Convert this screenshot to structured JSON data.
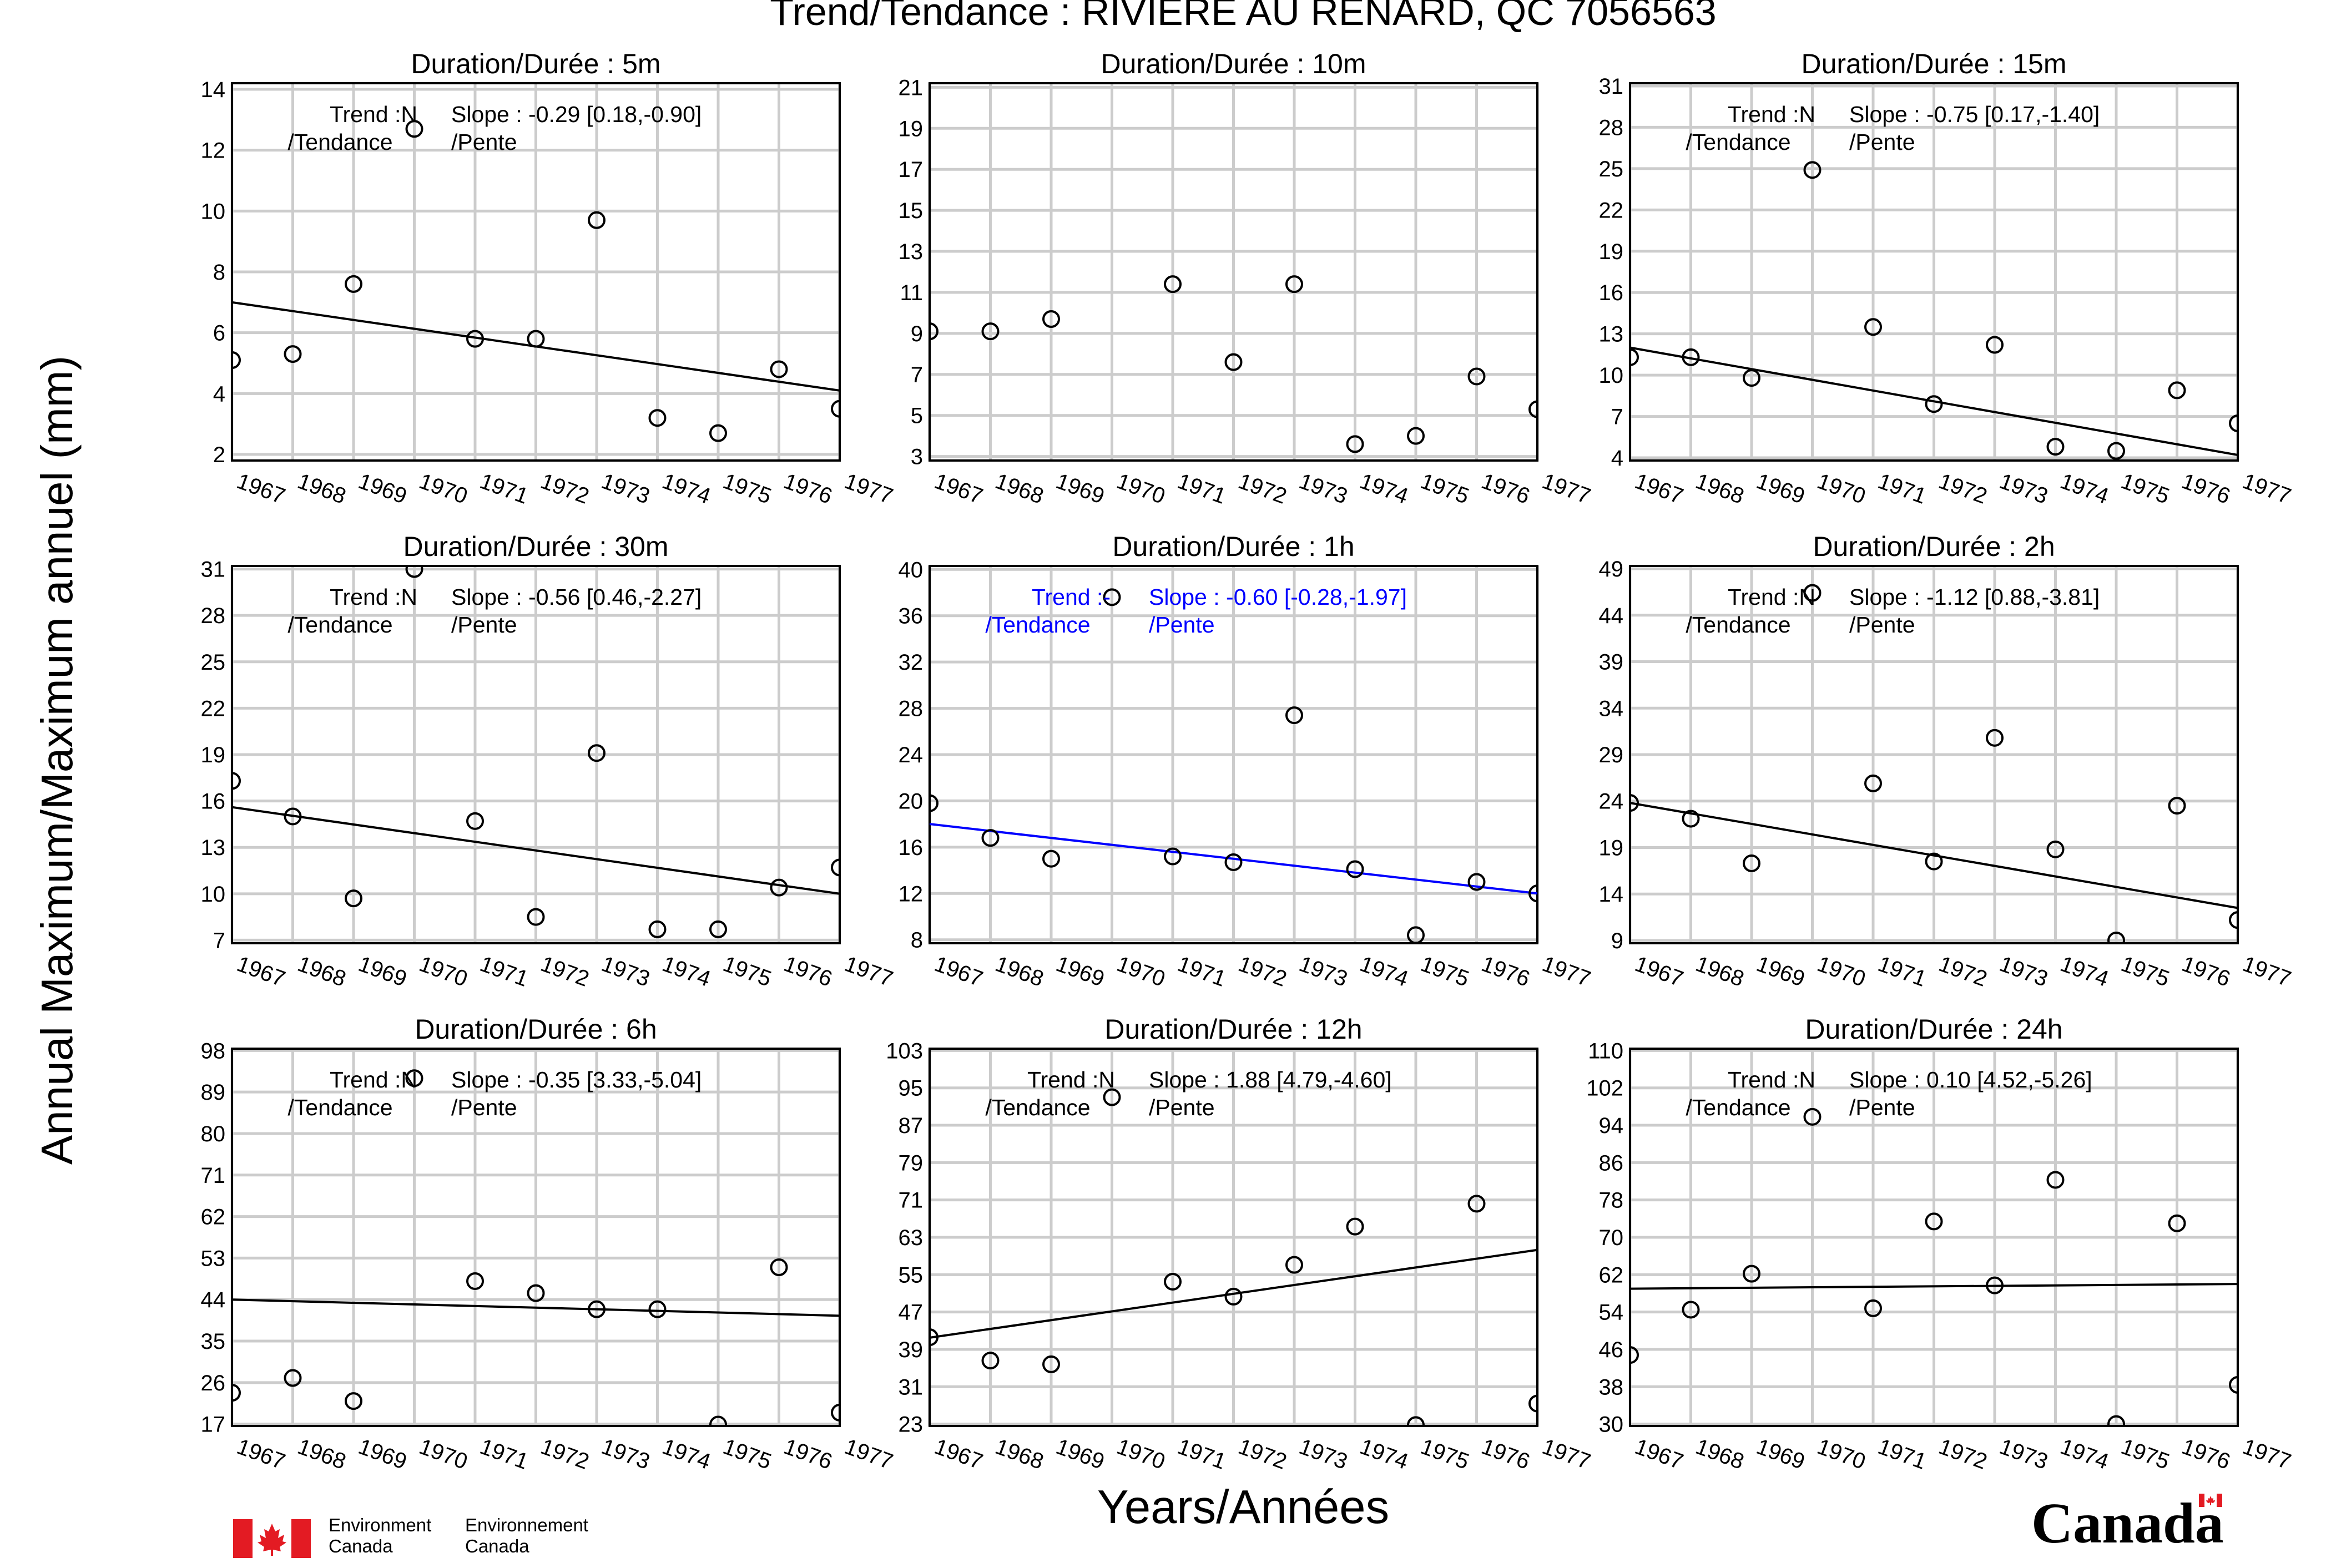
{
  "figure": {
    "title": "Trend/Tendance : RIVIERE AU RENARD, QC  7056563",
    "ylabel": "Annual Maximum/Maximum annuel (mm)",
    "xlabel": "Years/Années",
    "trend_label_line2": "/Tendance",
    "slope_label_line2": "/Pente"
  },
  "footer": {
    "env_en_line1": "Environment",
    "env_en_line2": "Canada",
    "env_fr_line1": "Environnement",
    "env_fr_line2": "Canada",
    "wordmark": "Canada"
  },
  "colors": {
    "marker": "#000000",
    "trendline_default": "#000000",
    "trendline_significant": "#0000ff",
    "grid": "#cccccc"
  },
  "chart_data": [
    {
      "type": "scatter",
      "title": "Duration/Durée : 5m",
      "x_ticks": [
        "1967",
        "1968",
        "1969",
        "1970",
        "1971",
        "1972",
        "1973",
        "1974",
        "1975",
        "1976",
        "1977"
      ],
      "y_ticks": [
        2,
        4,
        6,
        8,
        10,
        12,
        14
      ],
      "ylim": [
        1.8,
        14.2
      ],
      "points": [
        [
          1967,
          5.1
        ],
        [
          1968,
          5.3
        ],
        [
          1969,
          7.6
        ],
        [
          1970,
          12.7
        ],
        [
          1971,
          5.8
        ],
        [
          1972,
          5.8
        ],
        [
          1973,
          9.7
        ],
        [
          1974,
          3.2
        ],
        [
          1975,
          2.7
        ],
        [
          1976,
          4.8
        ],
        [
          1977,
          3.5
        ]
      ],
      "trend": {
        "x": [
          1967,
          1977
        ],
        "y": [
          7.0,
          4.1
        ]
      },
      "trend_text": "Trend :N",
      "slope_text": "Slope : -0.29 [0.18,-0.90]",
      "significant": false
    },
    {
      "type": "scatter",
      "title": "Duration/Durée : 10m",
      "x_ticks": [
        "1967",
        "1968",
        "1969",
        "1970",
        "1971",
        "1972",
        "1973",
        "1974",
        "1975",
        "1976",
        "1977"
      ],
      "y_ticks": [
        3,
        5,
        7,
        9,
        11,
        13,
        15,
        17,
        19,
        21
      ],
      "ylim": [
        2.8,
        21.2
      ],
      "points": [
        [
          1967,
          9.1
        ],
        [
          1968,
          9.1
        ],
        [
          1969,
          9.7
        ],
        [
          1971,
          11.4
        ],
        [
          1972,
          7.6
        ],
        [
          1973,
          11.4
        ],
        [
          1974,
          3.6
        ],
        [
          1975,
          4.0
        ],
        [
          1976,
          6.9
        ],
        [
          1977,
          5.3
        ]
      ],
      "trend": null,
      "trend_text": "",
      "slope_text": "",
      "significant": false
    },
    {
      "type": "scatter",
      "title": "Duration/Durée : 15m",
      "x_ticks": [
        "1967",
        "1968",
        "1969",
        "1970",
        "1971",
        "1972",
        "1973",
        "1974",
        "1975",
        "1976",
        "1977"
      ],
      "y_ticks": [
        4,
        7,
        10,
        13,
        16,
        19,
        22,
        25,
        28,
        31
      ],
      "ylim": [
        3.8,
        31.2
      ],
      "points": [
        [
          1967,
          11.3
        ],
        [
          1968,
          11.3
        ],
        [
          1969,
          9.8
        ],
        [
          1970,
          24.9
        ],
        [
          1971,
          13.5
        ],
        [
          1972,
          7.9
        ],
        [
          1973,
          12.2
        ],
        [
          1974,
          4.8
        ],
        [
          1975,
          4.5
        ],
        [
          1976,
          8.9
        ],
        [
          1977,
          6.5
        ]
      ],
      "trend": {
        "x": [
          1967,
          1977
        ],
        "y": [
          12.0,
          4.2
        ]
      },
      "trend_text": "Trend :N",
      "slope_text": "Slope : -0.75 [0.17,-1.40]",
      "significant": false
    },
    {
      "type": "scatter",
      "title": "Duration/Durée : 30m",
      "x_ticks": [
        "1967",
        "1968",
        "1969",
        "1970",
        "1971",
        "1972",
        "1973",
        "1974",
        "1975",
        "1976",
        "1977"
      ],
      "y_ticks": [
        7,
        10,
        13,
        16,
        19,
        22,
        25,
        28,
        31
      ],
      "ylim": [
        6.8,
        31.2
      ],
      "points": [
        [
          1967,
          17.3
        ],
        [
          1968,
          15.0
        ],
        [
          1969,
          9.7
        ],
        [
          1970,
          31.0
        ],
        [
          1971,
          14.7
        ],
        [
          1972,
          8.5
        ],
        [
          1973,
          19.1
        ],
        [
          1974,
          7.7
        ],
        [
          1975,
          7.7
        ],
        [
          1976,
          10.4
        ],
        [
          1977,
          11.7
        ]
      ],
      "trend": {
        "x": [
          1967,
          1977
        ],
        "y": [
          15.6,
          10.0
        ]
      },
      "trend_text": "Trend :N",
      "slope_text": "Slope : -0.56 [0.46,-2.27]",
      "significant": false
    },
    {
      "type": "scatter",
      "title": "Duration/Durée : 1h",
      "x_ticks": [
        "1967",
        "1968",
        "1969",
        "1970",
        "1971",
        "1972",
        "1973",
        "1974",
        "1975",
        "1976",
        "1977"
      ],
      "y_ticks": [
        8,
        12,
        16,
        20,
        24,
        28,
        32,
        36,
        40
      ],
      "ylim": [
        7.7,
        40.3
      ],
      "points": [
        [
          1967,
          19.8
        ],
        [
          1968,
          16.8
        ],
        [
          1969,
          15.0
        ],
        [
          1970,
          37.6
        ],
        [
          1971,
          15.2
        ],
        [
          1972,
          14.7
        ],
        [
          1973,
          27.4
        ],
        [
          1974,
          14.1
        ],
        [
          1975,
          8.4
        ],
        [
          1976,
          13.0
        ],
        [
          1977,
          12.0
        ]
      ],
      "trend": {
        "x": [
          1967,
          1977
        ],
        "y": [
          18.0,
          12.0
        ]
      },
      "trend_text": "Trend :-",
      "slope_text": "Slope : -0.60 [-0.28,-1.97]",
      "significant": true
    },
    {
      "type": "scatter",
      "title": "Duration/Durée : 2h",
      "x_ticks": [
        "1967",
        "1968",
        "1969",
        "1970",
        "1971",
        "1972",
        "1973",
        "1974",
        "1975",
        "1976",
        "1977"
      ],
      "y_ticks": [
        9,
        14,
        19,
        24,
        29,
        34,
        39,
        44,
        49
      ],
      "ylim": [
        8.7,
        49.3
      ],
      "points": [
        [
          1967,
          23.8
        ],
        [
          1968,
          22.1
        ],
        [
          1969,
          17.3
        ],
        [
          1970,
          46.4
        ],
        [
          1971,
          25.9
        ],
        [
          1972,
          17.5
        ],
        [
          1973,
          30.8
        ],
        [
          1974,
          18.8
        ],
        [
          1975,
          9.0
        ],
        [
          1976,
          23.5
        ],
        [
          1977,
          11.2
        ]
      ],
      "trend": {
        "x": [
          1967,
          1977
        ],
        "y": [
          23.8,
          12.5
        ]
      },
      "trend_text": "Trend :N",
      "slope_text": "Slope : -1.12 [0.88,-3.81]",
      "significant": false
    },
    {
      "type": "scatter",
      "title": "Duration/Durée : 6h",
      "x_ticks": [
        "1967",
        "1968",
        "1969",
        "1970",
        "1971",
        "1972",
        "1973",
        "1974",
        "1975",
        "1976",
        "1977"
      ],
      "y_ticks": [
        17,
        26,
        35,
        44,
        53,
        62,
        71,
        80,
        89,
        98
      ],
      "ylim": [
        16.6,
        98.4
      ],
      "points": [
        [
          1967,
          23.8
        ],
        [
          1968,
          27.0
        ],
        [
          1969,
          22.0
        ],
        [
          1970,
          92.0
        ],
        [
          1971,
          48.0
        ],
        [
          1972,
          45.4
        ],
        [
          1973,
          41.9
        ],
        [
          1974,
          41.9
        ],
        [
          1975,
          16.9
        ],
        [
          1976,
          51.0
        ],
        [
          1977,
          19.5
        ]
      ],
      "trend": {
        "x": [
          1967,
          1977
        ],
        "y": [
          44.0,
          40.5
        ]
      },
      "trend_text": "Trend :N",
      "slope_text": "Slope : -0.35 [3.33,-5.04]",
      "significant": false
    },
    {
      "type": "scatter",
      "title": "Duration/Durée : 12h",
      "x_ticks": [
        "1967",
        "1968",
        "1969",
        "1970",
        "1971",
        "1972",
        "1973",
        "1974",
        "1975",
        "1976",
        "1977"
      ],
      "y_ticks": [
        23,
        31,
        39,
        47,
        55,
        63,
        71,
        79,
        87,
        95,
        103
      ],
      "ylim": [
        22.6,
        103.4
      ],
      "points": [
        [
          1967,
          41.6
        ],
        [
          1968,
          36.6
        ],
        [
          1969,
          35.8
        ],
        [
          1970,
          93.0
        ],
        [
          1971,
          53.5
        ],
        [
          1972,
          50.3
        ],
        [
          1973,
          57.1
        ],
        [
          1974,
          65.3
        ],
        [
          1975,
          22.8
        ],
        [
          1976,
          70.2
        ],
        [
          1977,
          27.4
        ]
      ],
      "trend": {
        "x": [
          1967,
          1977
        ],
        "y": [
          41.5,
          60.3
        ]
      },
      "trend_text": "Trend :N",
      "slope_text": "Slope : 1.88 [4.79,-4.60]",
      "significant": false
    },
    {
      "type": "scatter",
      "title": "Duration/Durée : 24h",
      "x_ticks": [
        "1967",
        "1968",
        "1969",
        "1970",
        "1971",
        "1972",
        "1973",
        "1974",
        "1975",
        "1976",
        "1977"
      ],
      "y_ticks": [
        30,
        38,
        46,
        54,
        62,
        70,
        78,
        86,
        94,
        102,
        110
      ],
      "ylim": [
        29.6,
        110.4
      ],
      "points": [
        [
          1967,
          44.8
        ],
        [
          1968,
          54.5
        ],
        [
          1969,
          62.2
        ],
        [
          1970,
          95.8
        ],
        [
          1971,
          54.8
        ],
        [
          1972,
          73.4
        ],
        [
          1973,
          59.7
        ],
        [
          1974,
          82.3
        ],
        [
          1975,
          30.0
        ],
        [
          1976,
          73.0
        ],
        [
          1977,
          38.4
        ]
      ],
      "trend": {
        "x": [
          1967,
          1977
        ],
        "y": [
          59.0,
          60.0
        ]
      },
      "trend_text": "Trend :N",
      "slope_text": "Slope : 0.10 [4.52,-5.26]",
      "significant": false
    }
  ]
}
